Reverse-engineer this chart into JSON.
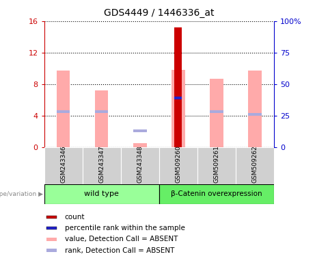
{
  "title": "GDS4449 / 1446336_at",
  "samples": [
    "GSM243346",
    "GSM243347",
    "GSM243348",
    "GSM509260",
    "GSM509261",
    "GSM509262"
  ],
  "left_ylim": [
    0,
    16
  ],
  "left_yticks": [
    0,
    4,
    8,
    12,
    16
  ],
  "right_ylim": [
    0,
    100
  ],
  "right_yticks": [
    0,
    25,
    50,
    75,
    100
  ],
  "right_yticklabels": [
    "0",
    "25",
    "50",
    "75",
    "100%"
  ],
  "count_values": [
    0,
    0,
    0,
    15.2,
    0,
    0
  ],
  "rank_values": [
    0,
    0,
    0,
    6.25,
    0,
    0
  ],
  "value_absent": [
    9.7,
    7.2,
    0.5,
    9.8,
    8.7,
    9.7
  ],
  "rank_absent": [
    4.5,
    4.5,
    2.1,
    0,
    4.5,
    4.2
  ],
  "count_color": "#cc0000",
  "rank_color": "#2222cc",
  "value_absent_color": "#ffaaaa",
  "rank_absent_color": "#aaaadd",
  "tick_color_left": "#cc0000",
  "tick_color_right": "#0000cc",
  "group1_label": "wild type",
  "group1_color": "#99ff99",
  "group2_label": "β-Catenin overexpression",
  "group2_color": "#66ee66",
  "legend_items": [
    [
      "#cc0000",
      "count"
    ],
    [
      "#2222cc",
      "percentile rank within the sample"
    ],
    [
      "#ffaaaa",
      "value, Detection Call = ABSENT"
    ],
    [
      "#aaaadd",
      "rank, Detection Call = ABSENT"
    ]
  ]
}
